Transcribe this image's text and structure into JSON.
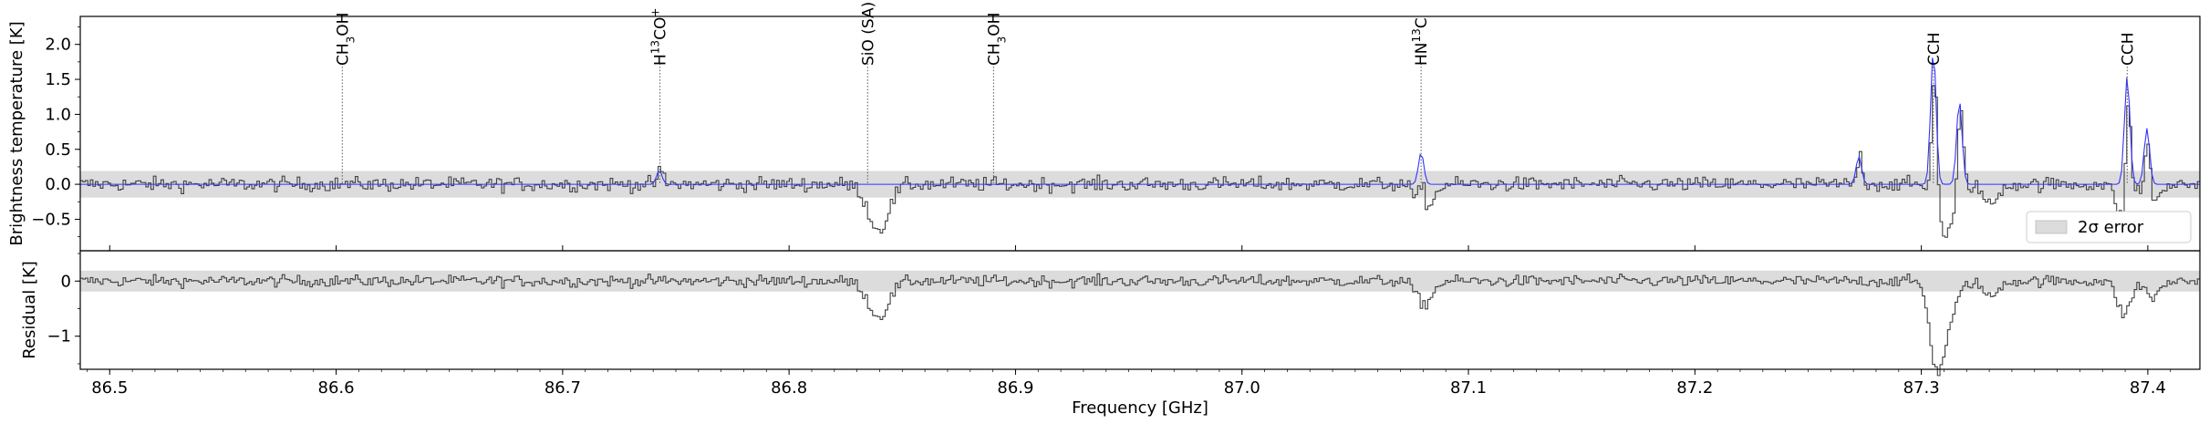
{
  "chart_data": [
    {
      "type": "line",
      "panel": "top",
      "ylabel": "Brightness temperature [K]",
      "xlim": [
        86.487,
        87.423
      ],
      "ylim": [
        -0.95,
        2.4
      ],
      "yticks": [
        "−0.5",
        "0.0",
        "0.5",
        "1.0",
        "1.5",
        "2.0"
      ],
      "ytick_values": [
        -0.5,
        0.0,
        0.5,
        1.0,
        1.5,
        2.0
      ],
      "error_band": [
        -0.19,
        0.19
      ],
      "legend": {
        "label": "2σ error",
        "placement": "lower-right"
      },
      "series": [
        {
          "kind": "observed-spectrum",
          "color": "#404040"
        },
        {
          "kind": "model-fit",
          "color": "#3333ff"
        }
      ],
      "model_peaks": [
        {
          "x": 86.7427,
          "amp": 0.2
        },
        {
          "x": 87.0791,
          "amp": 0.45
        },
        {
          "x": 87.2724,
          "amp": 0.4
        },
        {
          "x": 87.3053,
          "amp": 1.92
        },
        {
          "x": 87.3168,
          "amp": 1.2
        },
        {
          "x": 87.3909,
          "amp": 1.55
        },
        {
          "x": 87.3996,
          "amp": 0.8
        }
      ],
      "absorption_features": [
        {
          "x": 86.839,
          "depth": -0.65,
          "width": 0.0045
        },
        {
          "x": 87.08,
          "depth": -0.42,
          "width": 0.0035
        },
        {
          "x": 87.31,
          "depth": -0.72,
          "width": 0.004
        },
        {
          "x": 87.33,
          "depth": -0.3,
          "width": 0.003
        },
        {
          "x": 87.389,
          "depth": -0.55,
          "width": 0.003
        },
        {
          "x": 87.402,
          "depth": -0.3,
          "width": 0.003
        }
      ],
      "line_ids": [
        {
          "x": 86.6027,
          "label": "CH",
          "sub": "3",
          "tail": "OH"
        },
        {
          "x": 86.743,
          "label": "H",
          "sup": "13",
          "tail": "CO",
          "sup2": "+"
        },
        {
          "x": 86.8347,
          "label": "SiO (SA)"
        },
        {
          "x": 86.8903,
          "label": "CH",
          "sub": "3",
          "tail": "OH"
        },
        {
          "x": 87.0791,
          "label": "HN",
          "sup": "13",
          "tail": "C"
        },
        {
          "x": 87.3053,
          "label": "CCH"
        },
        {
          "x": 87.3909,
          "label": "CCH"
        }
      ]
    },
    {
      "type": "line",
      "panel": "bottom",
      "ylabel": "Residual [K]",
      "xlabel": "Frequency [GHz]",
      "xlim": [
        86.487,
        87.423
      ],
      "ylim": [
        -1.6,
        0.55
      ],
      "yticks": [
        "−1",
        "0"
      ],
      "ytick_values": [
        -1,
        0
      ],
      "xticks": [
        "86.5",
        "86.6",
        "86.7",
        "86.8",
        "86.9",
        "87.0",
        "87.1",
        "87.2",
        "87.3",
        "87.4"
      ],
      "xtick_values": [
        86.5,
        86.6,
        86.7,
        86.8,
        86.9,
        87.0,
        87.1,
        87.2,
        87.3,
        87.4
      ],
      "error_band": [
        -0.19,
        0.19
      ],
      "series": [
        {
          "kind": "residual",
          "color": "#404040"
        }
      ],
      "absorption_features": [
        {
          "x": 86.839,
          "depth": -0.65,
          "width": 0.0045
        },
        {
          "x": 87.08,
          "depth": -0.42,
          "width": 0.0035
        },
        {
          "x": 87.306,
          "depth": -1.3,
          "width": 0.003
        },
        {
          "x": 87.311,
          "depth": -0.7,
          "width": 0.004
        },
        {
          "x": 87.33,
          "depth": -0.3,
          "width": 0.003
        },
        {
          "x": 87.389,
          "depth": -0.6,
          "width": 0.003
        },
        {
          "x": 87.402,
          "depth": -0.3,
          "width": 0.003
        }
      ]
    }
  ]
}
